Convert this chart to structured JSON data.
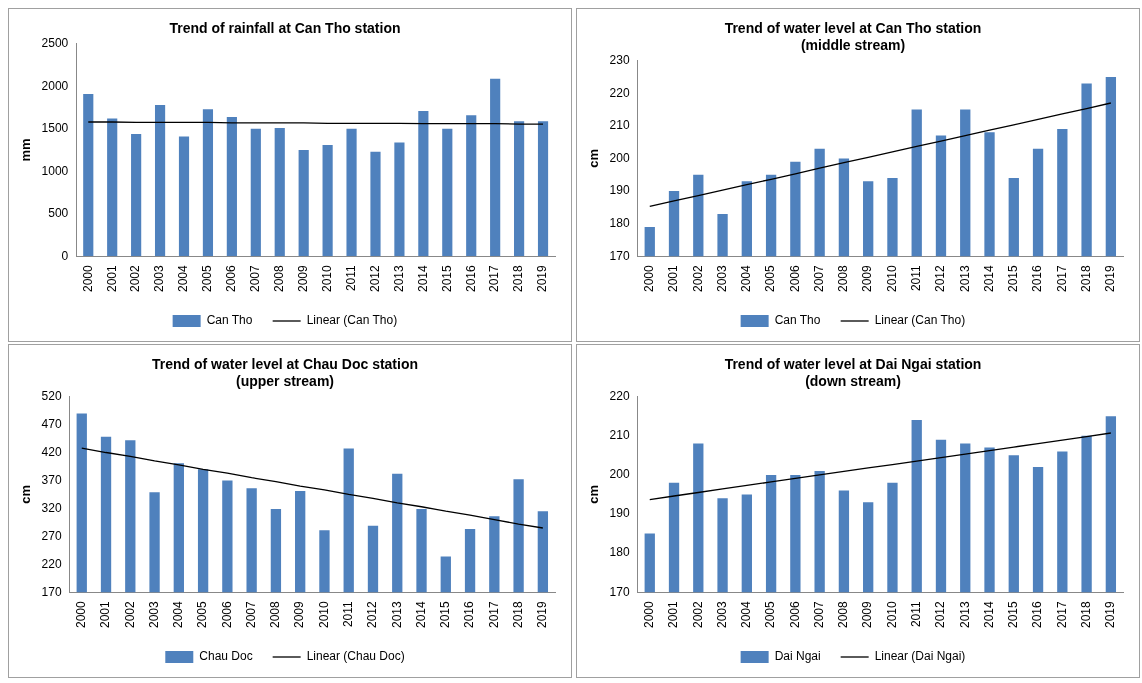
{
  "chart_data": [
    {
      "type": "bar",
      "title": "Trend of rainfall at Can Tho station",
      "ylabel": "mm",
      "categories": [
        "2000",
        "2001",
        "2002",
        "2003",
        "2004",
        "2005",
        "2006",
        "2007",
        "2008",
        "2009",
        "2010",
        "2011",
        "2012",
        "2013",
        "2014",
        "2015",
        "2016",
        "2017",
        "2018",
        "2019"
      ],
      "ylim": [
        0,
        2500
      ],
      "yticks": [
        0,
        500,
        1000,
        1500,
        2000,
        2500
      ],
      "grid": false,
      "legend": "bottom",
      "series": [
        {
          "name": "Can Tho",
          "color": "#4f81bd",
          "values": [
            1910,
            1620,
            1440,
            1780,
            1410,
            1730,
            1640,
            1500,
            1510,
            1250,
            1310,
            1500,
            1230,
            1340,
            1710,
            1500,
            1660,
            2090,
            1590,
            1590
          ]
        },
        {
          "name": "Linear (Can Tho)",
          "type": "line",
          "color": "#000000",
          "marker": "none",
          "line_style": "solid",
          "values": [
            1580,
            1580,
            1575,
            1575,
            1575,
            1575,
            1570,
            1570,
            1570,
            1570,
            1565,
            1565,
            1565,
            1565,
            1560,
            1560,
            1560,
            1560,
            1555,
            1555
          ]
        }
      ]
    },
    {
      "type": "bar",
      "title": "Trend of water level at Can Tho station",
      "subtitle": "(middle stream)",
      "ylabel": "cm",
      "categories": [
        "2000",
        "2001",
        "2002",
        "2003",
        "2004",
        "2005",
        "2006",
        "2007",
        "2008",
        "2009",
        "2010",
        "2011",
        "2012",
        "2013",
        "2014",
        "2015",
        "2016",
        "2017",
        "2018",
        "2019"
      ],
      "ylim": [
        170,
        230
      ],
      "yticks": [
        170,
        180,
        190,
        200,
        210,
        220,
        230
      ],
      "grid": false,
      "legend": "bottom",
      "series": [
        {
          "name": "Can Tho",
          "color": "#4f81bd",
          "values": [
            179,
            190,
            195,
            183,
            193,
            195,
            199,
            203,
            200,
            193,
            194,
            215,
            207,
            215,
            208,
            194,
            203,
            209,
            223,
            225
          ]
        },
        {
          "name": "Linear (Can Tho)",
          "type": "line",
          "color": "#000000",
          "marker": "none",
          "line_style": "solid",
          "values": [
            185.3,
            187.0,
            188.6,
            190.3,
            192.0,
            193.6,
            195.3,
            197.0,
            198.7,
            200.3,
            202.0,
            203.7,
            205.3,
            207.0,
            208.7,
            210.3,
            212.0,
            213.7,
            215.3,
            217.0
          ]
        }
      ]
    },
    {
      "type": "bar",
      "title": "Trend of water level at Chau Doc station",
      "subtitle": "(upper stream)",
      "ylabel": "cm",
      "categories": [
        "2000",
        "2001",
        "2002",
        "2003",
        "2004",
        "2005",
        "2006",
        "2007",
        "2008",
        "2009",
        "2010",
        "2011",
        "2012",
        "2013",
        "2014",
        "2015",
        "2016",
        "2017",
        "2018",
        "2019"
      ],
      "ylim": [
        170,
        520
      ],
      "yticks": [
        170,
        220,
        270,
        320,
        370,
        420,
        470,
        520
      ],
      "grid": false,
      "legend": "bottom",
      "series": [
        {
          "name": "Chau Doc",
          "color": "#4f81bd",
          "values": [
            490,
            448,
            442,
            349,
            401,
            390,
            370,
            356,
            319,
            351,
            281,
            427,
            289,
            382,
            319,
            234,
            283,
            306,
            372,
            315
          ]
        },
        {
          "name": "Linear (Chau Doc)",
          "type": "line",
          "color": "#000000",
          "marker": "none",
          "line_style": "solid",
          "values": [
            428,
            420,
            413,
            405,
            398,
            390,
            383,
            375,
            368,
            360,
            353,
            345,
            338,
            330,
            323,
            315,
            308,
            300,
            292,
            285
          ]
        }
      ]
    },
    {
      "type": "bar",
      "title": "Trend of water level at Dai Ngai station",
      "subtitle": "(down stream)",
      "ylabel": "cm",
      "categories": [
        "2000",
        "2001",
        "2002",
        "2003",
        "2004",
        "2005",
        "2006",
        "2007",
        "2008",
        "2009",
        "2010",
        "2011",
        "2012",
        "2013",
        "2014",
        "2015",
        "2016",
        "2017",
        "2018",
        "2019"
      ],
      "ylim": [
        170,
        220
      ],
      "yticks": [
        170,
        180,
        190,
        200,
        210,
        220
      ],
      "grid": false,
      "legend": "bottom",
      "series": [
        {
          "name": "Dai Ngai",
          "color": "#4f81bd",
          "values": [
            185,
            198,
            208,
            194,
            195,
            200,
            200,
            201,
            196,
            193,
            198,
            214,
            209,
            208,
            207,
            205,
            202,
            206,
            210,
            215
          ]
        },
        {
          "name": "Linear (Dai Ngai)",
          "type": "line",
          "color": "#000000",
          "marker": "none",
          "line_style": "solid",
          "values": [
            193.7,
            194.6,
            195.5,
            196.4,
            197.3,
            198.2,
            199.1,
            200.0,
            200.9,
            201.8,
            202.6,
            203.5,
            204.4,
            205.3,
            206.2,
            207.1,
            208.0,
            208.9,
            209.8,
            210.7
          ]
        }
      ]
    }
  ]
}
